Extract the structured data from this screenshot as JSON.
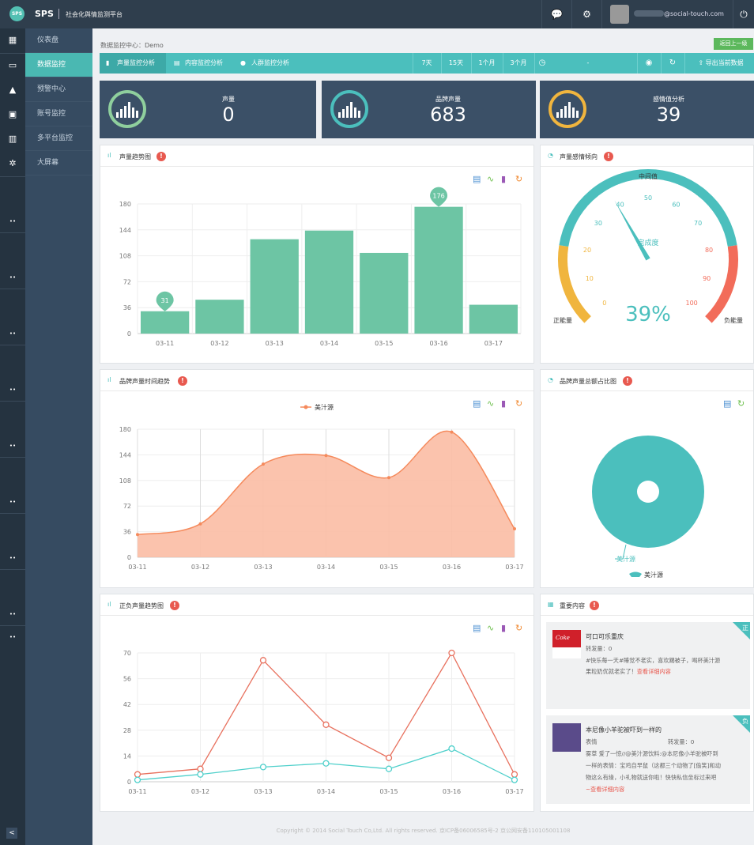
{
  "app": {
    "logo": "SPS",
    "brand": "SPS",
    "subtitle": "社会化舆情监测平台",
    "email": "@social-touch.com"
  },
  "topbar_icons": [
    "chat-icon",
    "gear-icon",
    "power-icon"
  ],
  "sidebar": {
    "items": [
      {
        "label": "仪表盘"
      },
      {
        "label": "数据监控"
      },
      {
        "label": "预警中心"
      },
      {
        "label": "账号监控"
      },
      {
        "label": "多平台监控"
      },
      {
        "label": "大屏幕"
      }
    ],
    "collapse": "<"
  },
  "breadcrumb": "数据监控中心：Demo",
  "back_button": "返回上一级",
  "tabs": [
    {
      "label": "声量监控分析"
    },
    {
      "label": "内容监控分析"
    },
    {
      "label": "人群监控分析"
    }
  ],
  "ranges": [
    "7天",
    "15天",
    "1个月",
    "3个月"
  ],
  "date_placeholder": "-",
  "export_label": "导出当前数据",
  "kpis": [
    {
      "label": "声量",
      "value": "0",
      "color": "#8fcf9d"
    },
    {
      "label": "品牌声量",
      "value": "683",
      "color": "#4bbfbd"
    },
    {
      "label": "感情值分析",
      "value": "39",
      "color": "#f0b53e"
    }
  ],
  "panels": {
    "volume_trend": "声量趋势图",
    "sentiment": "声量感情倾向",
    "brand_time": "品牌声量时间趋势",
    "brand_share": "品牌声量总额占比图",
    "posneg": "正负声量趋势图",
    "important": "重要内容"
  },
  "chart_data": [
    {
      "type": "bar",
      "title": "声量趋势图",
      "categories": [
        "03-11",
        "03-12",
        "03-13",
        "03-14",
        "03-15",
        "03-16",
        "03-17"
      ],
      "values": [
        31,
        47,
        131,
        143,
        112,
        176,
        40
      ],
      "ylim": [
        0,
        180
      ],
      "yticks": [
        0,
        36,
        72,
        108,
        144,
        180
      ],
      "markers": [
        {
          "category": "03-11",
          "label": "31"
        },
        {
          "category": "03-16",
          "label": "176"
        }
      ],
      "color": "#6dc5a4",
      "grid": true
    },
    {
      "type": "gauge",
      "title": "声量感情倾向",
      "value": 39,
      "display": "39%",
      "min": 0,
      "max": 100,
      "ticks": [
        0,
        10,
        20,
        30,
        40,
        50,
        60,
        70,
        80,
        90,
        100
      ],
      "top_label": "中间值",
      "left_label": "正能量",
      "right_label": "负能量",
      "center_label": "完成度",
      "segments": [
        {
          "to": 20,
          "color": "#f0b53e"
        },
        {
          "to": 80,
          "color": "#4bbfbd"
        },
        {
          "to": 100,
          "color": "#f26c5a"
        }
      ]
    },
    {
      "type": "area",
      "title": "品牌声量时间趋势",
      "categories": [
        "03-11",
        "03-12",
        "03-13",
        "03-14",
        "03-15",
        "03-16",
        "03-17"
      ],
      "series": [
        {
          "name": "美汁源",
          "values": [
            32,
            47,
            131,
            143,
            112,
            176,
            40
          ]
        }
      ],
      "ylim": [
        0,
        180
      ],
      "yticks": [
        0,
        36,
        72,
        108,
        144,
        180
      ],
      "color": "#f58a5c",
      "fill": "#fbbca4",
      "grid": true,
      "legend": "top-center"
    },
    {
      "type": "pie",
      "title": "品牌声量总额占比图",
      "slices": [
        {
          "name": "美汁源",
          "value": 100
        }
      ],
      "color": "#4bbfbd",
      "legend": "bottom",
      "label": "美汁源"
    },
    {
      "type": "line",
      "title": "正负声量趋势图",
      "categories": [
        "03-11",
        "03-12",
        "03-13",
        "03-14",
        "03-15",
        "03-16",
        "03-17"
      ],
      "series": [
        {
          "values": [
            4,
            7,
            66,
            31,
            13,
            70,
            4
          ],
          "color": "#e8715e"
        },
        {
          "values": [
            1,
            4,
            8,
            10,
            7,
            18,
            1
          ],
          "color": "#4fd0cb"
        }
      ],
      "ylim": [
        0,
        70
      ],
      "yticks": [
        0,
        14,
        28,
        42,
        56,
        70
      ],
      "grid": true
    }
  ],
  "news": [
    {
      "tag": "正",
      "title": "可口可乐重庆",
      "reposts": "转发量：0",
      "lines": [
        "#快乐每一天#睡觉不老实，喜欢踢被子，喝杯美汁源",
        "果粒奶优就老实了！"
      ],
      "link": "查看详细内容"
    },
    {
      "tag": "负",
      "title": "本尼像小羊驼被吓到一样的",
      "author": "表情",
      "reposts": "转发量：0",
      "lines": [
        "雾草 爱了一惊//@美汁源饮料:@本尼像小羊驼被吓到",
        "一样的表情：宝鸡自早鼠（这都三个动物了[偷笑]和动",
        "物这么有缘，小礼物就送你啦！快快私信坐标过来吧"
      ],
      "link": "~查看详细内容"
    }
  ],
  "footer": "Copyright © 2014 Social Touch Co,Ltd. All rights reserved. 京ICP备06006585号-2 京公网安备110105001108"
}
